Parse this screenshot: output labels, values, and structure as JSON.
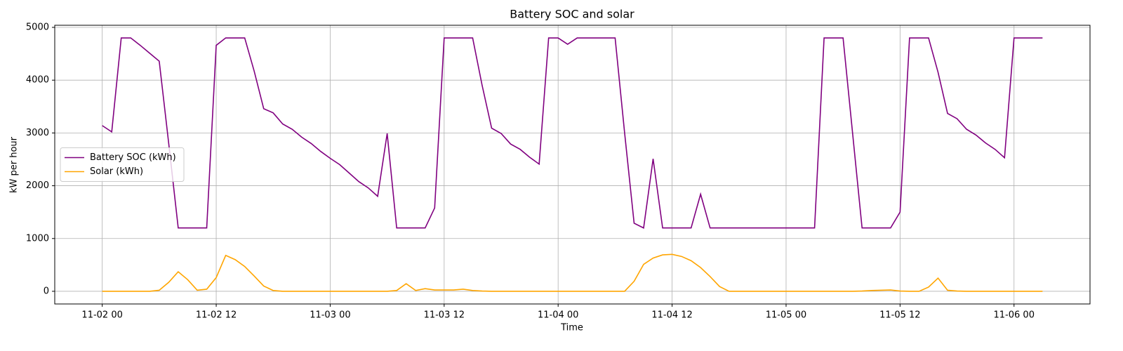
{
  "chart_data": {
    "type": "line",
    "title": "Battery SOC and solar",
    "xlabel": "Time",
    "ylabel": "kW per hour",
    "x": [
      "11-02 00",
      "11-02 01",
      "11-02 02",
      "11-02 03",
      "11-02 04",
      "11-02 05",
      "11-02 06",
      "11-02 07",
      "11-02 08",
      "11-02 09",
      "11-02 10",
      "11-02 11",
      "11-02 12",
      "11-02 13",
      "11-02 14",
      "11-02 15",
      "11-02 16",
      "11-02 17",
      "11-02 18",
      "11-02 19",
      "11-02 20",
      "11-02 21",
      "11-02 22",
      "11-02 23",
      "11-03 00",
      "11-03 01",
      "11-03 02",
      "11-03 03",
      "11-03 04",
      "11-03 05",
      "11-03 06",
      "11-03 07",
      "11-03 08",
      "11-03 09",
      "11-03 10",
      "11-03 11",
      "11-03 12",
      "11-03 13",
      "11-03 14",
      "11-03 15",
      "11-03 16",
      "11-03 17",
      "11-03 18",
      "11-03 19",
      "11-03 20",
      "11-03 21",
      "11-03 22",
      "11-03 23",
      "11-04 00",
      "11-04 01",
      "11-04 02",
      "11-04 03",
      "11-04 04",
      "11-04 05",
      "11-04 06",
      "11-04 07",
      "11-04 08",
      "11-04 09",
      "11-04 10",
      "11-04 11",
      "11-04 12",
      "11-04 13",
      "11-04 14",
      "11-04 15",
      "11-04 16",
      "11-04 17",
      "11-04 18",
      "11-04 19",
      "11-04 20",
      "11-04 21",
      "11-04 22",
      "11-04 23",
      "11-05 00",
      "11-05 01",
      "11-05 02",
      "11-05 03",
      "11-05 04",
      "11-05 05",
      "11-05 06",
      "11-05 07",
      "11-05 08",
      "11-05 09",
      "11-05 10",
      "11-05 11",
      "11-05 12",
      "11-05 13",
      "11-05 14",
      "11-05 15",
      "11-05 16",
      "11-05 17",
      "11-05 18",
      "11-05 19",
      "11-05 20",
      "11-05 21",
      "11-05 22",
      "11-05 23",
      "11-06 00",
      "11-06 01",
      "11-06 02",
      "11-06 03"
    ],
    "series": [
      {
        "name": "Battery SOC (kWh)",
        "color": "#800080",
        "values": [
          3140,
          3020,
          4800,
          4800,
          4660,
          4510,
          4360,
          2800,
          1200,
          1200,
          1200,
          1200,
          4660,
          4800,
          4800,
          4800,
          4170,
          3460,
          3380,
          3170,
          3070,
          2920,
          2800,
          2650,
          2520,
          2400,
          2240,
          2080,
          1960,
          1800,
          2990,
          1200,
          1200,
          1200,
          1200,
          1580,
          4800,
          4800,
          4800,
          4800,
          3900,
          3090,
          2990,
          2790,
          2690,
          2540,
          2410,
          4800,
          4800,
          4680,
          4800,
          4800,
          4800,
          4800,
          4800,
          3000,
          1290,
          1200,
          2510,
          1200,
          1200,
          1200,
          1200,
          1840,
          1200,
          1200,
          1200,
          1200,
          1200,
          1200,
          1200,
          1200,
          1200,
          1200,
          1200,
          1200,
          4800,
          4800,
          4800,
          3000,
          1200,
          1200,
          1200,
          1200,
          1500,
          4800,
          4800,
          4800,
          4150,
          3370,
          3270,
          3070,
          2960,
          2810,
          2690,
          2530,
          4800,
          4800,
          4800,
          4800
        ]
      },
      {
        "name": "Solar (kWh)",
        "color": "#ffa500",
        "values": [
          0,
          0,
          0,
          0,
          0,
          0,
          20,
          170,
          370,
          220,
          20,
          40,
          260,
          680,
          600,
          470,
          290,
          100,
          15,
          0,
          0,
          0,
          0,
          0,
          0,
          0,
          0,
          0,
          0,
          0,
          0,
          15,
          145,
          15,
          50,
          25,
          25,
          25,
          40,
          15,
          5,
          0,
          0,
          0,
          0,
          0,
          0,
          0,
          0,
          0,
          0,
          0,
          0,
          0,
          0,
          0,
          190,
          510,
          630,
          690,
          700,
          660,
          580,
          450,
          280,
          90,
          0,
          0,
          0,
          0,
          0,
          0,
          0,
          0,
          0,
          0,
          0,
          0,
          0,
          0,
          5,
          15,
          20,
          25,
          5,
          0,
          0,
          80,
          250,
          20,
          5,
          0,
          0,
          0,
          0,
          0,
          0,
          0,
          0,
          0
        ]
      }
    ],
    "xlim": [
      "11-01 19",
      "11-06 08"
    ],
    "xticks": [
      "11-02 00",
      "11-02 12",
      "11-03 00",
      "11-03 12",
      "11-04 00",
      "11-04 12",
      "11-05 00",
      "11-05 12",
      "11-06 00"
    ],
    "ylim": [
      -240,
      5040
    ],
    "yticks": [
      0,
      1000,
      2000,
      3000,
      4000,
      5000
    ],
    "grid": true,
    "legend": "center left"
  }
}
